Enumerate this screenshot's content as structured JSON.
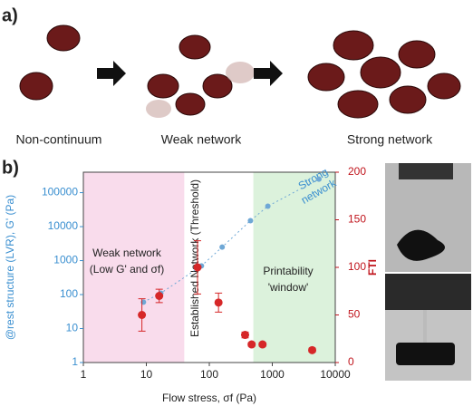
{
  "panel_a": {
    "label": "a)",
    "stages": [
      "Non-continuum",
      "Weak network",
      "Strong network"
    ]
  },
  "chart_data": {
    "type": "scatter",
    "panel_label": "b)",
    "xlabel": "Flow stress, σf (Pa)",
    "ylabel": "@rest structure (LVR), G' (Pa)",
    "y2label": "FTI",
    "log_x": true,
    "log_y": true,
    "xlim": [
      1,
      10000
    ],
    "xticks": [
      1,
      10,
      100,
      1000,
      10000
    ],
    "ylim": [
      1,
      400000
    ],
    "yticks": [
      1,
      10,
      100,
      1000,
      10000,
      100000
    ],
    "y2lim": [
      0,
      200
    ],
    "y2ticks": [
      0,
      50,
      100,
      150,
      200
    ],
    "regions": [
      {
        "x": [
          1,
          40
        ],
        "color": "#f9dcec"
      },
      {
        "x": [
          500,
          10000
        ],
        "color": "#dcf2dc"
      }
    ],
    "annotations": [
      "Weak network",
      "(Low G' and σf)",
      "Established Network (Threshold)",
      "Printability",
      "'window'",
      "Strong",
      "network"
    ],
    "series": [
      {
        "color": "#6fa8d6",
        "line": "dotted",
        "x": [
          9,
          17,
          75,
          160,
          450,
          850,
          5500
        ],
        "values": [
          60,
          110,
          700,
          2500,
          15000,
          40000,
          250000
        ]
      },
      {
        "color": "#d62728",
        "axis": "y2",
        "x": [
          8.5,
          16,
          65,
          140,
          370,
          470,
          700,
          4300
        ],
        "values": [
          50,
          70,
          100,
          63,
          29,
          19,
          19,
          13
        ],
        "errors": [
          17,
          7,
          28,
          10,
          3,
          2,
          2,
          2
        ]
      }
    ]
  }
}
